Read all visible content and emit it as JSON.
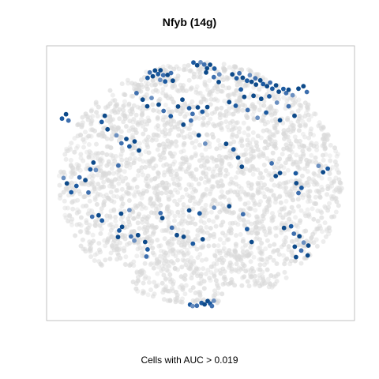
{
  "chart_data": {
    "type": "scatter",
    "title": "Nfyb (14g)",
    "caption": "Cells with AUC > 0.019",
    "xlabel": "",
    "ylabel": "",
    "xlim": [
      0,
      100
    ],
    "ylim": [
      0,
      100
    ],
    "axes_ticks": false,
    "grid": false,
    "background_points_color": "#d9d9d9",
    "highlight_colors": [
      "#0d4a8a",
      "#1c5aa0",
      "#3e6fae",
      "#6a8fc0"
    ],
    "background_count": 2600,
    "series": [
      {
        "name": "",
        "points": [
          [
            33.5,
            90.3
          ],
          [
            34.5,
            88.9
          ],
          [
            35.2,
            91.0
          ],
          [
            36.2,
            89.7
          ],
          [
            37.0,
            91.1
          ],
          [
            37.9,
            89.3
          ],
          [
            32.8,
            88.3
          ],
          [
            36.9,
            87.6
          ],
          [
            39.3,
            89.4
          ],
          [
            38.5,
            87.0
          ],
          [
            40.4,
            90.1
          ],
          [
            41.0,
            87.3
          ],
          [
            47.7,
            93.9
          ],
          [
            48.9,
            92.9
          ],
          [
            50.0,
            94.0
          ],
          [
            51.2,
            93.2
          ],
          [
            52.1,
            91.8
          ],
          [
            53.1,
            93.1
          ],
          [
            54.5,
            91.7
          ],
          [
            51.8,
            90.3
          ],
          [
            54.3,
            88.6
          ],
          [
            56.1,
            89.6
          ],
          [
            55.9,
            86.8
          ],
          [
            60.3,
            89.6
          ],
          [
            61.7,
            88.2
          ],
          [
            62.6,
            90.0
          ],
          [
            63.7,
            88.4
          ],
          [
            65.1,
            87.3
          ],
          [
            66.0,
            89.3
          ],
          [
            66.6,
            86.9
          ],
          [
            67.8,
            88.2
          ],
          [
            68.0,
            85.9
          ],
          [
            69.4,
            87.4
          ],
          [
            70.3,
            86.1
          ],
          [
            71.6,
            85.3
          ],
          [
            72.6,
            86.6
          ],
          [
            73.3,
            84.4
          ],
          [
            74.5,
            85.6
          ],
          [
            75.4,
            83.3
          ],
          [
            76.9,
            84.3
          ],
          [
            77.8,
            82.8
          ],
          [
            78.6,
            84.0
          ],
          [
            79.9,
            82.0
          ],
          [
            81.8,
            84.4
          ],
          [
            83.4,
            85.3
          ],
          [
            84.5,
            83.2
          ],
          [
            67.2,
            81.8
          ],
          [
            69.7,
            80.7
          ],
          [
            72.3,
            81.6
          ],
          [
            74.8,
            79.3
          ],
          [
            78.6,
            78.0
          ],
          [
            63.1,
            84.1
          ],
          [
            64.2,
            81.4
          ],
          [
            59.3,
            79.5
          ],
          [
            61.4,
            78.2
          ],
          [
            65.3,
            76.6
          ],
          [
            68.5,
            73.8
          ],
          [
            71.3,
            75.7
          ],
          [
            75.8,
            72.9
          ],
          [
            80.5,
            74.5
          ],
          [
            29.2,
            82.8
          ],
          [
            31.2,
            80.4
          ],
          [
            32.7,
            78.0
          ],
          [
            34.1,
            81.0
          ],
          [
            36.4,
            78.6
          ],
          [
            38.0,
            76.3
          ],
          [
            40.3,
            74.4
          ],
          [
            42.7,
            77.9
          ],
          [
            44.1,
            80.4
          ],
          [
            46.3,
            77.3
          ],
          [
            47.4,
            75.2
          ],
          [
            49.1,
            77.6
          ],
          [
            50.6,
            76.0
          ],
          [
            52.2,
            77.7
          ],
          [
            44.4,
            71.3
          ],
          [
            46.9,
            72.8
          ],
          [
            49.4,
            67.4
          ],
          [
            51.5,
            64.4
          ],
          [
            5.0,
            73.5
          ],
          [
            6.3,
            75.1
          ],
          [
            7.1,
            72.8
          ],
          [
            17.9,
            72.3
          ],
          [
            18.9,
            74.5
          ],
          [
            19.8,
            69.6
          ],
          [
            22.7,
            67.4
          ],
          [
            24.3,
            64.5
          ],
          [
            25.9,
            66.1
          ],
          [
            26.9,
            63.4
          ],
          [
            28.6,
            65.2
          ],
          [
            30.0,
            61.9
          ],
          [
            23.3,
            56.4
          ],
          [
            16.0,
            54.8
          ],
          [
            15.2,
            57.5
          ],
          [
            14.2,
            55.0
          ],
          [
            12.6,
            51.1
          ],
          [
            10.7,
            52.1
          ],
          [
            9.7,
            49.0
          ],
          [
            6.6,
            49.9
          ],
          [
            5.5,
            51.9
          ],
          [
            8.0,
            46.7
          ],
          [
            13.6,
            46.6
          ],
          [
            58.3,
            64.3
          ],
          [
            60.7,
            62.3
          ],
          [
            62.2,
            59.3
          ],
          [
            63.4,
            56.0
          ],
          [
            73.1,
            57.2
          ],
          [
            74.4,
            52.6
          ],
          [
            75.8,
            53.7
          ],
          [
            80.9,
            53.6
          ],
          [
            81.1,
            50.0
          ],
          [
            81.8,
            46.4
          ],
          [
            82.8,
            48.3
          ],
          [
            88.3,
            56.3
          ],
          [
            89.8,
            54.0
          ],
          [
            91.3,
            55.3
          ],
          [
            14.8,
            37.8
          ],
          [
            16.9,
            38.3
          ],
          [
            18.0,
            36.4
          ],
          [
            24.2,
            38.9
          ],
          [
            26.9,
            40.2
          ],
          [
            37.0,
            39.1
          ],
          [
            37.6,
            37.3
          ],
          [
            23.2,
            30.4
          ],
          [
            23.6,
            32.8
          ],
          [
            24.5,
            34.1
          ],
          [
            27.4,
            30.6
          ],
          [
            28.5,
            29.1
          ],
          [
            29.7,
            31.1
          ],
          [
            32.0,
            28.6
          ],
          [
            32.8,
            25.9
          ],
          [
            32.4,
            23.3
          ],
          [
            46.3,
            40.1
          ],
          [
            49.7,
            39.0
          ],
          [
            54.4,
            41.1
          ],
          [
            59.3,
            41.6
          ],
          [
            40.7,
            33.8
          ],
          [
            42.3,
            31.1
          ],
          [
            44.5,
            30.5
          ],
          [
            47.5,
            28.0
          ],
          [
            50.7,
            29.6
          ],
          [
            63.8,
            38.7
          ],
          [
            65.1,
            33.3
          ],
          [
            66.6,
            28.6
          ],
          [
            77.1,
            33.7
          ],
          [
            79.4,
            34.3
          ],
          [
            80.3,
            31.6
          ],
          [
            82.1,
            30.7
          ],
          [
            83.5,
            28.4
          ],
          [
            85.0,
            27.3
          ],
          [
            84.8,
            23.7
          ],
          [
            82.7,
            25.5
          ],
          [
            80.6,
            26.9
          ],
          [
            81.0,
            23.1
          ],
          [
            46.6,
            5.8
          ],
          [
            47.4,
            5.3
          ],
          [
            48.8,
            5.4
          ],
          [
            50.3,
            6.4
          ],
          [
            51.3,
            5.9
          ],
          [
            52.3,
            7.1
          ],
          [
            53.1,
            6.2
          ],
          [
            53.7,
            5.3
          ],
          [
            54.3,
            7.2
          ]
        ]
      }
    ]
  }
}
